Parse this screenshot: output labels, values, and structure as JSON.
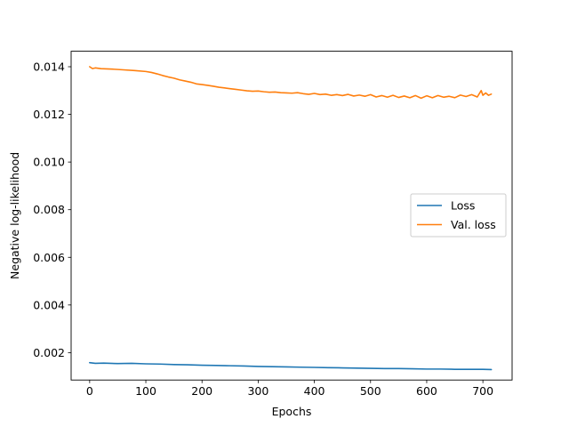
{
  "chart_data": {
    "type": "line",
    "title": "",
    "xlabel": "Epochs",
    "ylabel": "Negative log-likelihood",
    "xlim": [
      -33,
      752
    ],
    "ylim": [
      0.00085,
      0.01465
    ],
    "xticks": [
      0,
      100,
      200,
      300,
      400,
      500,
      600,
      700
    ],
    "yticks": [
      0.002,
      0.004,
      0.006,
      0.008,
      0.01,
      0.012,
      0.014
    ],
    "ytick_labels": [
      "0.002",
      "0.004",
      "0.006",
      "0.008",
      "0.010",
      "0.012",
      "0.014"
    ],
    "grid": false,
    "legend_position": "center-right",
    "series": [
      {
        "name": "Loss",
        "color": "#1f77b4",
        "x": [
          0,
          10,
          25,
          50,
          75,
          100,
          125,
          150,
          175,
          200,
          225,
          250,
          275,
          300,
          325,
          350,
          375,
          400,
          425,
          450,
          475,
          500,
          525,
          550,
          575,
          600,
          625,
          650,
          675,
          700,
          715
        ],
        "y": [
          0.00158,
          0.00155,
          0.00156,
          0.00154,
          0.00155,
          0.00153,
          0.00152,
          0.0015,
          0.00149,
          0.00147,
          0.00146,
          0.00145,
          0.00144,
          0.00142,
          0.00141,
          0.0014,
          0.00139,
          0.00138,
          0.00137,
          0.00136,
          0.00135,
          0.00134,
          0.00133,
          0.00133,
          0.00132,
          0.00131,
          0.00131,
          0.0013,
          0.0013,
          0.0013,
          0.00129
        ]
      },
      {
        "name": "Val. loss",
        "color": "#ff7f0e",
        "x": [
          0,
          5,
          10,
          20,
          40,
          60,
          80,
          100,
          110,
          120,
          130,
          140,
          150,
          160,
          170,
          180,
          190,
          200,
          210,
          220,
          230,
          240,
          250,
          260,
          270,
          280,
          290,
          300,
          310,
          320,
          330,
          340,
          350,
          360,
          370,
          380,
          390,
          400,
          410,
          420,
          430,
          440,
          450,
          460,
          470,
          480,
          490,
          500,
          510,
          520,
          530,
          540,
          550,
          560,
          570,
          580,
          590,
          600,
          610,
          620,
          630,
          640,
          650,
          660,
          670,
          680,
          690,
          697,
          700,
          705,
          710,
          715
        ],
        "y": [
          0.014,
          0.01392,
          0.01395,
          0.01392,
          0.0139,
          0.01387,
          0.01384,
          0.0138,
          0.01376,
          0.0137,
          0.01363,
          0.01357,
          0.01352,
          0.01345,
          0.0134,
          0.01335,
          0.01328,
          0.01325,
          0.01322,
          0.01318,
          0.01314,
          0.01311,
          0.01308,
          0.01305,
          0.01302,
          0.01299,
          0.01297,
          0.01298,
          0.01295,
          0.01293,
          0.01294,
          0.01291,
          0.0129,
          0.01289,
          0.01291,
          0.01287,
          0.01284,
          0.01288,
          0.01283,
          0.01285,
          0.0128,
          0.01283,
          0.01279,
          0.01284,
          0.01277,
          0.01281,
          0.01276,
          0.01283,
          0.01273,
          0.01279,
          0.01272,
          0.0128,
          0.01271,
          0.01277,
          0.0127,
          0.01279,
          0.01268,
          0.01278,
          0.0127,
          0.01279,
          0.01272,
          0.01276,
          0.0127,
          0.01281,
          0.01275,
          0.01283,
          0.01273,
          0.013,
          0.0128,
          0.0129,
          0.0128,
          0.01285
        ]
      }
    ]
  }
}
